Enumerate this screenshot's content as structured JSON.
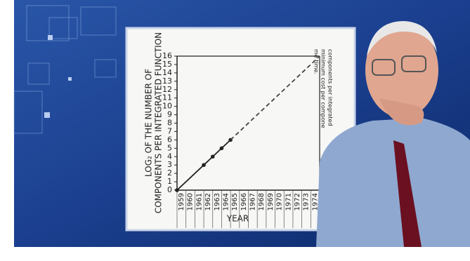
{
  "chart_data": {
    "type": "line",
    "y_label_lines": [
      "LOG₂ OF THE NUMBER OF",
      "COMPONENTS PER INTEGRATED FUNCTION"
    ],
    "x_label": "YEAR",
    "annotations": [
      "components per integrated",
      "minimum cost per compone",
      "me time."
    ],
    "series": [
      {
        "color": "#222222",
        "line_style": "solid",
        "markers": true,
        "x": [
          1959,
          1962,
          1963,
          1964,
          1965
        ],
        "values": [
          0,
          3,
          4,
          5,
          6
        ]
      },
      {
        "color": "#444444",
        "line_style": "dashed",
        "markers": false,
        "x": [
          1965,
          1975
        ],
        "values": [
          6,
          16
        ]
      }
    ],
    "xlim": [
      1959,
      1975
    ],
    "xticks": [
      1959,
      1960,
      1961,
      1962,
      1963,
      1964,
      1965,
      1966,
      1967,
      1968,
      1969,
      1970,
      1971,
      1972,
      1973,
      1974
    ],
    "ylim": [
      0,
      16
    ],
    "yticks": [
      0,
      1,
      2,
      3,
      4,
      5,
      6,
      7,
      8,
      9,
      10,
      11,
      12,
      13,
      14,
      15,
      16
    ]
  }
}
